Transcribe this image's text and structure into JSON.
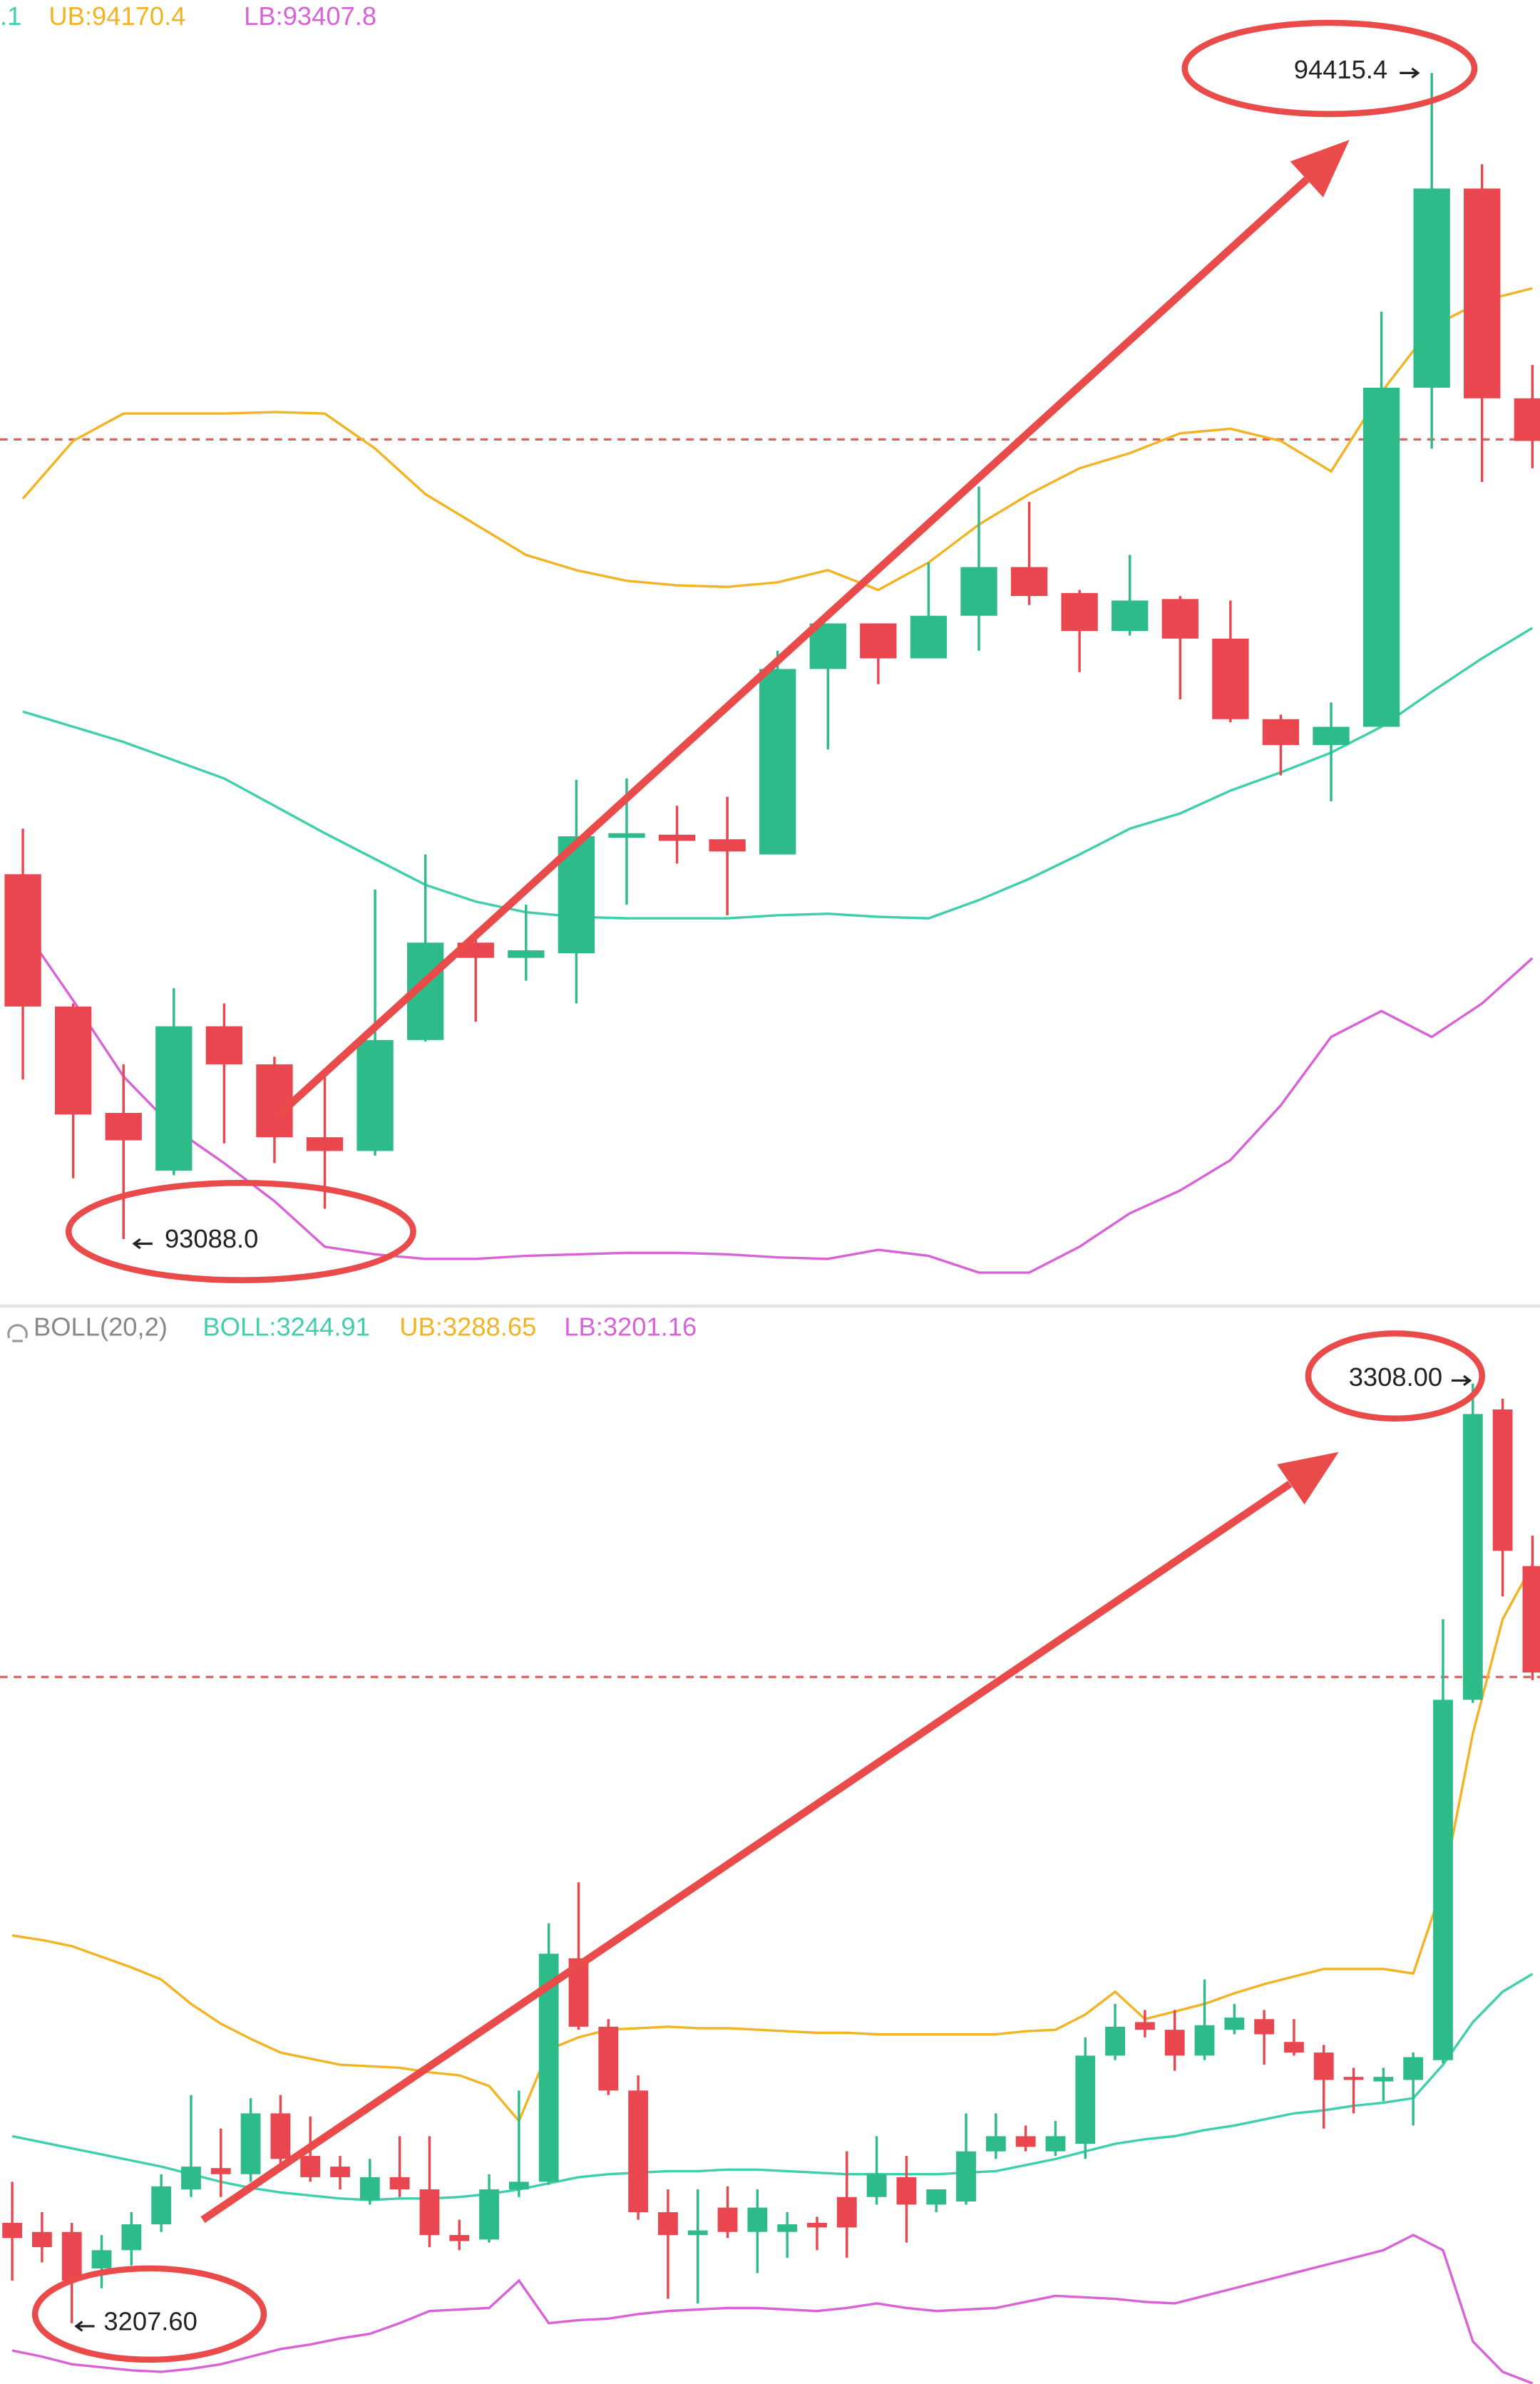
{
  "chart_data": [
    {
      "type": "candlestick",
      "open": [
        93503.4,
        93352.8,
        93231.7,
        93165.9,
        93330.3,
        93287.0,
        93204.0,
        93188.4,
        93314.7,
        93425.5,
        93408.2,
        93413.4,
        93544.9,
        93548.4,
        93543.2,
        93525.9,
        93737.0,
        93788.9,
        93749.1,
        93797.6,
        93853.0,
        93823.5,
        93780.3,
        93816.6,
        93771.6,
        93679.9,
        93650.5,
        93671.2,
        94057.2,
        94283.9,
        94045.1
      ],
      "high": [
        93555.3,
        93356.3,
        93287.0,
        93373.6,
        93356.3,
        93295.7,
        93281.9,
        93486.1,
        93525.9,
        93439.3,
        93468.8,
        93610.7,
        93612.4,
        93581.3,
        93591.6,
        93757.8,
        93788.9,
        93788.9,
        93858.1,
        93944.7,
        93927.4,
        93827.0,
        93866.8,
        93820.1,
        93814.9,
        93685.1,
        93698.9,
        94143.7,
        94415.4,
        94311.6,
        94083.1
      ],
      "low": [
        93269.7,
        93157.3,
        93088.0,
        93160.7,
        93197.1,
        93174.6,
        93122.6,
        93183.2,
        93313.0,
        93335.5,
        93382.2,
        93356.3,
        93468.8,
        93515.5,
        93456.6,
        93525.9,
        93645.3,
        93719.7,
        93749.1,
        93757.8,
        93809.7,
        93733.5,
        93775.1,
        93702.4,
        93676.4,
        93615.9,
        93586.4,
        93671.2,
        93987.9,
        93949.9,
        93965.4
      ],
      "close": [
        93352.8,
        93229.9,
        93200.5,
        93330.3,
        93287.0,
        93204.0,
        93188.4,
        93314.7,
        93425.5,
        93408.2,
        93416.8,
        93546.6,
        93550.1,
        93541.4,
        93529.3,
        93737.0,
        93788.9,
        93749.1,
        93797.6,
        93853.0,
        93820.1,
        93780.3,
        93814.9,
        93771.6,
        93679.9,
        93650.5,
        93671.2,
        94057.2,
        94283.9,
        94045.1,
        93996.6
      ],
      "up_color": "#2dbb8a",
      "down_color": "#e9464f",
      "series": [
        {
          "name": ".1",
          "color": "#3fcfac",
          "values": [
            93688.5,
            93671.2,
            93653.9,
            93633.2,
            93612.4,
            93581.3,
            93550.1,
            93520.7,
            93491.3,
            93472.2,
            93460.1,
            93454.9,
            93453.2,
            93453.2,
            93453.2,
            93456.6,
            93458.4,
            93454.9,
            93453.2,
            93474.0,
            93498.2,
            93525.9,
            93555.3,
            93572.6,
            93598.6,
            93619.3,
            93641.8,
            93671.2,
            93711.0,
            93749.1,
            93783.7
          ]
        },
        {
          "name": "UB:94170.4",
          "color": "#f2b324",
          "values": [
            93930.8,
            93996.6,
            94027.7,
            94027.7,
            94027.7,
            94029.5,
            94027.7,
            93987.9,
            93936.0,
            93901.4,
            93866.8,
            93849.5,
            93837.4,
            93832.2,
            93830.5,
            93835.6,
            93849.5,
            93827.0,
            93858.1,
            93901.4,
            93936.0,
            93965.4,
            93982.7,
            94005.2,
            94010.4,
            93996.6,
            93962.0,
            94052.0,
            94126.4,
            94155.8,
            94170.4
          ]
        },
        {
          "name": "LB:93407.8",
          "color": "#d862d6",
          "values": [
            93442.8,
            93359.7,
            93273.2,
            93214.4,
            93174.6,
            93131.3,
            93079.4,
            93070.7,
            93065.5,
            93065.5,
            93069.0,
            93070.7,
            93072.5,
            93072.5,
            93070.7,
            93067.3,
            93065.5,
            93075.9,
            93069.0,
            93050.0,
            93050.0,
            93079.4,
            93117.4,
            93143.4,
            93178.0,
            93240.3,
            93318.2,
            93347.6,
            93318.2,
            93356.3,
            93407.8
          ]
        }
      ],
      "price_line": 93998.3,
      "high_label": "94415.4",
      "low_label": "93088.0",
      "ylim": [
        93018.8,
        94498.5
      ]
    },
    {
      "type": "candlestick",
      "indicator": "BOLL(20,2)",
      "open": [
        3218.32,
        3217.35,
        3217.35,
        3213.45,
        3215.4,
        3218.16,
        3221.9,
        3224.17,
        3223.52,
        3230.02,
        3225.47,
        3224.33,
        3220.76,
        3223.2,
        3221.9,
        3217.02,
        3216.54,
        3221.9,
        3222.71,
        3246.59,
        3239.28,
        3232.46,
        3219.46,
        3217.02,
        3219.95,
        3217.35,
        3217.35,
        3218.32,
        3221.08,
        3221.08,
        3223.2,
        3220.27,
        3220.6,
        3225.96,
        3227.58,
        3225.96,
        3226.77,
        3236.19,
        3239.77,
        3238.95,
        3236.19,
        3238.95,
        3240.09,
        3237.65,
        3236.52,
        3233.92,
        3233.43,
        3233.59,
        3235.71,
        3274.21,
        3305.24,
        3288.5
      ],
      "high": [
        3222.71,
        3219.46,
        3218.32,
        3217.02,
        3219.46,
        3223.52,
        3231.97,
        3228.39,
        3231.64,
        3231.97,
        3229.69,
        3225.47,
        3225.15,
        3227.58,
        3227.58,
        3218.65,
        3223.52,
        3232.46,
        3250.33,
        3254.71,
        3240.09,
        3234.08,
        3221.9,
        3221.9,
        3222.22,
        3221.9,
        3219.46,
        3218.97,
        3225.96,
        3227.58,
        3225.47,
        3221.9,
        3230.02,
        3230.02,
        3228.72,
        3229.21,
        3238.14,
        3241.72,
        3241.07,
        3241.07,
        3244.32,
        3241.72,
        3241.07,
        3240.09,
        3237.33,
        3234.89,
        3234.89,
        3236.52,
        3282.82,
        3308.0,
        3306.38,
        3291.75
      ],
      "low": [
        3212.15,
        3214.1,
        3207.6,
        3211.34,
        3213.77,
        3217.35,
        3221.08,
        3221.08,
        3222.71,
        3224.33,
        3222.71,
        3221.9,
        3220.27,
        3221.08,
        3215.72,
        3215.4,
        3216.21,
        3221.08,
        3222.38,
        3238.95,
        3231.97,
        3218.65,
        3210.2,
        3209.71,
        3216.7,
        3212.96,
        3214.59,
        3215.4,
        3214.59,
        3220.27,
        3216.21,
        3219.46,
        3220.27,
        3225.15,
        3225.96,
        3225.47,
        3225.15,
        3235.71,
        3238.14,
        3234.57,
        3235.71,
        3238.47,
        3235.22,
        3236.19,
        3228.39,
        3230.02,
        3231.32,
        3228.72,
        3235.38,
        3273.88,
        3285.26,
        3276.32
      ],
      "close": [
        3216.7,
        3215.72,
        3212.15,
        3215.4,
        3218.16,
        3222.22,
        3224.33,
        3223.52,
        3230.02,
        3225.15,
        3223.2,
        3223.2,
        3223.2,
        3221.9,
        3217.02,
        3216.37,
        3221.9,
        3222.71,
        3247.08,
        3239.28,
        3232.46,
        3219.46,
        3217.02,
        3217.51,
        3217.35,
        3219.95,
        3218.16,
        3217.83,
        3217.83,
        3223.52,
        3220.27,
        3221.9,
        3225.96,
        3227.58,
        3226.44,
        3227.58,
        3236.19,
        3239.28,
        3238.95,
        3236.19,
        3239.44,
        3240.25,
        3238.47,
        3236.52,
        3233.59,
        3233.59,
        3233.92,
        3236.03,
        3274.21,
        3304.75,
        3290.13,
        3277.13
      ],
      "up_color": "#2dbb8a",
      "down_color": "#e9464f",
      "series": [
        {
          "name": "BOLL:3244.91",
          "color": "#3fcfac",
          "values": [
            3227.58,
            3226.93,
            3226.28,
            3225.63,
            3224.98,
            3224.33,
            3223.52,
            3222.71,
            3222.06,
            3221.57,
            3221.25,
            3220.92,
            3220.76,
            3220.92,
            3220.92,
            3221.08,
            3221.41,
            3221.9,
            3222.55,
            3223.2,
            3223.52,
            3223.68,
            3223.85,
            3223.85,
            3224.01,
            3224.01,
            3223.85,
            3223.68,
            3223.52,
            3223.52,
            3223.52,
            3223.52,
            3223.68,
            3223.85,
            3224.5,
            3225.15,
            3225.96,
            3226.77,
            3227.26,
            3227.58,
            3228.23,
            3228.72,
            3229.37,
            3230.02,
            3230.34,
            3230.83,
            3231.16,
            3231.64,
            3235.22,
            3239.77,
            3243.02,
            3244.91
          ]
        },
        {
          "name": "UB:3288.65",
          "color": "#f2b324",
          "values": [
            3249.03,
            3248.54,
            3247.89,
            3246.75,
            3245.62,
            3244.32,
            3241.72,
            3239.6,
            3237.98,
            3236.52,
            3235.87,
            3235.22,
            3235.06,
            3234.89,
            3234.41,
            3234.08,
            3232.94,
            3229.21,
            3236.84,
            3238.14,
            3238.95,
            3239.12,
            3239.28,
            3239.12,
            3239.12,
            3238.95,
            3238.79,
            3238.63,
            3238.63,
            3238.47,
            3238.47,
            3238.47,
            3238.47,
            3238.47,
            3238.79,
            3238.95,
            3240.58,
            3243.02,
            3240.09,
            3240.9,
            3241.72,
            3242.85,
            3243.83,
            3244.64,
            3245.45,
            3245.45,
            3245.45,
            3244.97,
            3254.39,
            3270.63,
            3282.82,
            3288.65
          ]
        },
        {
          "name": "LB:3201.16",
          "color": "#d862d6",
          "values": [
            3204.68,
            3204.03,
            3203.21,
            3202.89,
            3202.56,
            3202.4,
            3202.73,
            3203.21,
            3204.03,
            3204.84,
            3205.33,
            3205.98,
            3206.46,
            3207.6,
            3208.9,
            3209.06,
            3209.22,
            3212.15,
            3207.6,
            3207.92,
            3208.09,
            3208.57,
            3208.9,
            3209.06,
            3209.22,
            3209.22,
            3209.06,
            3208.9,
            3209.22,
            3209.71,
            3209.22,
            3208.9,
            3209.06,
            3209.22,
            3209.87,
            3210.52,
            3210.36,
            3210.2,
            3209.87,
            3209.71,
            3210.52,
            3211.34,
            3212.15,
            3212.96,
            3213.77,
            3214.59,
            3215.4,
            3217.02,
            3215.4,
            3205.65,
            3202.4,
            3201.16
          ]
        }
      ],
      "price_line": 3276.65,
      "high_label": "3308.00",
      "low_label": "3207.60",
      "ylim": [
        3201.1,
        3315.8
      ]
    }
  ]
}
